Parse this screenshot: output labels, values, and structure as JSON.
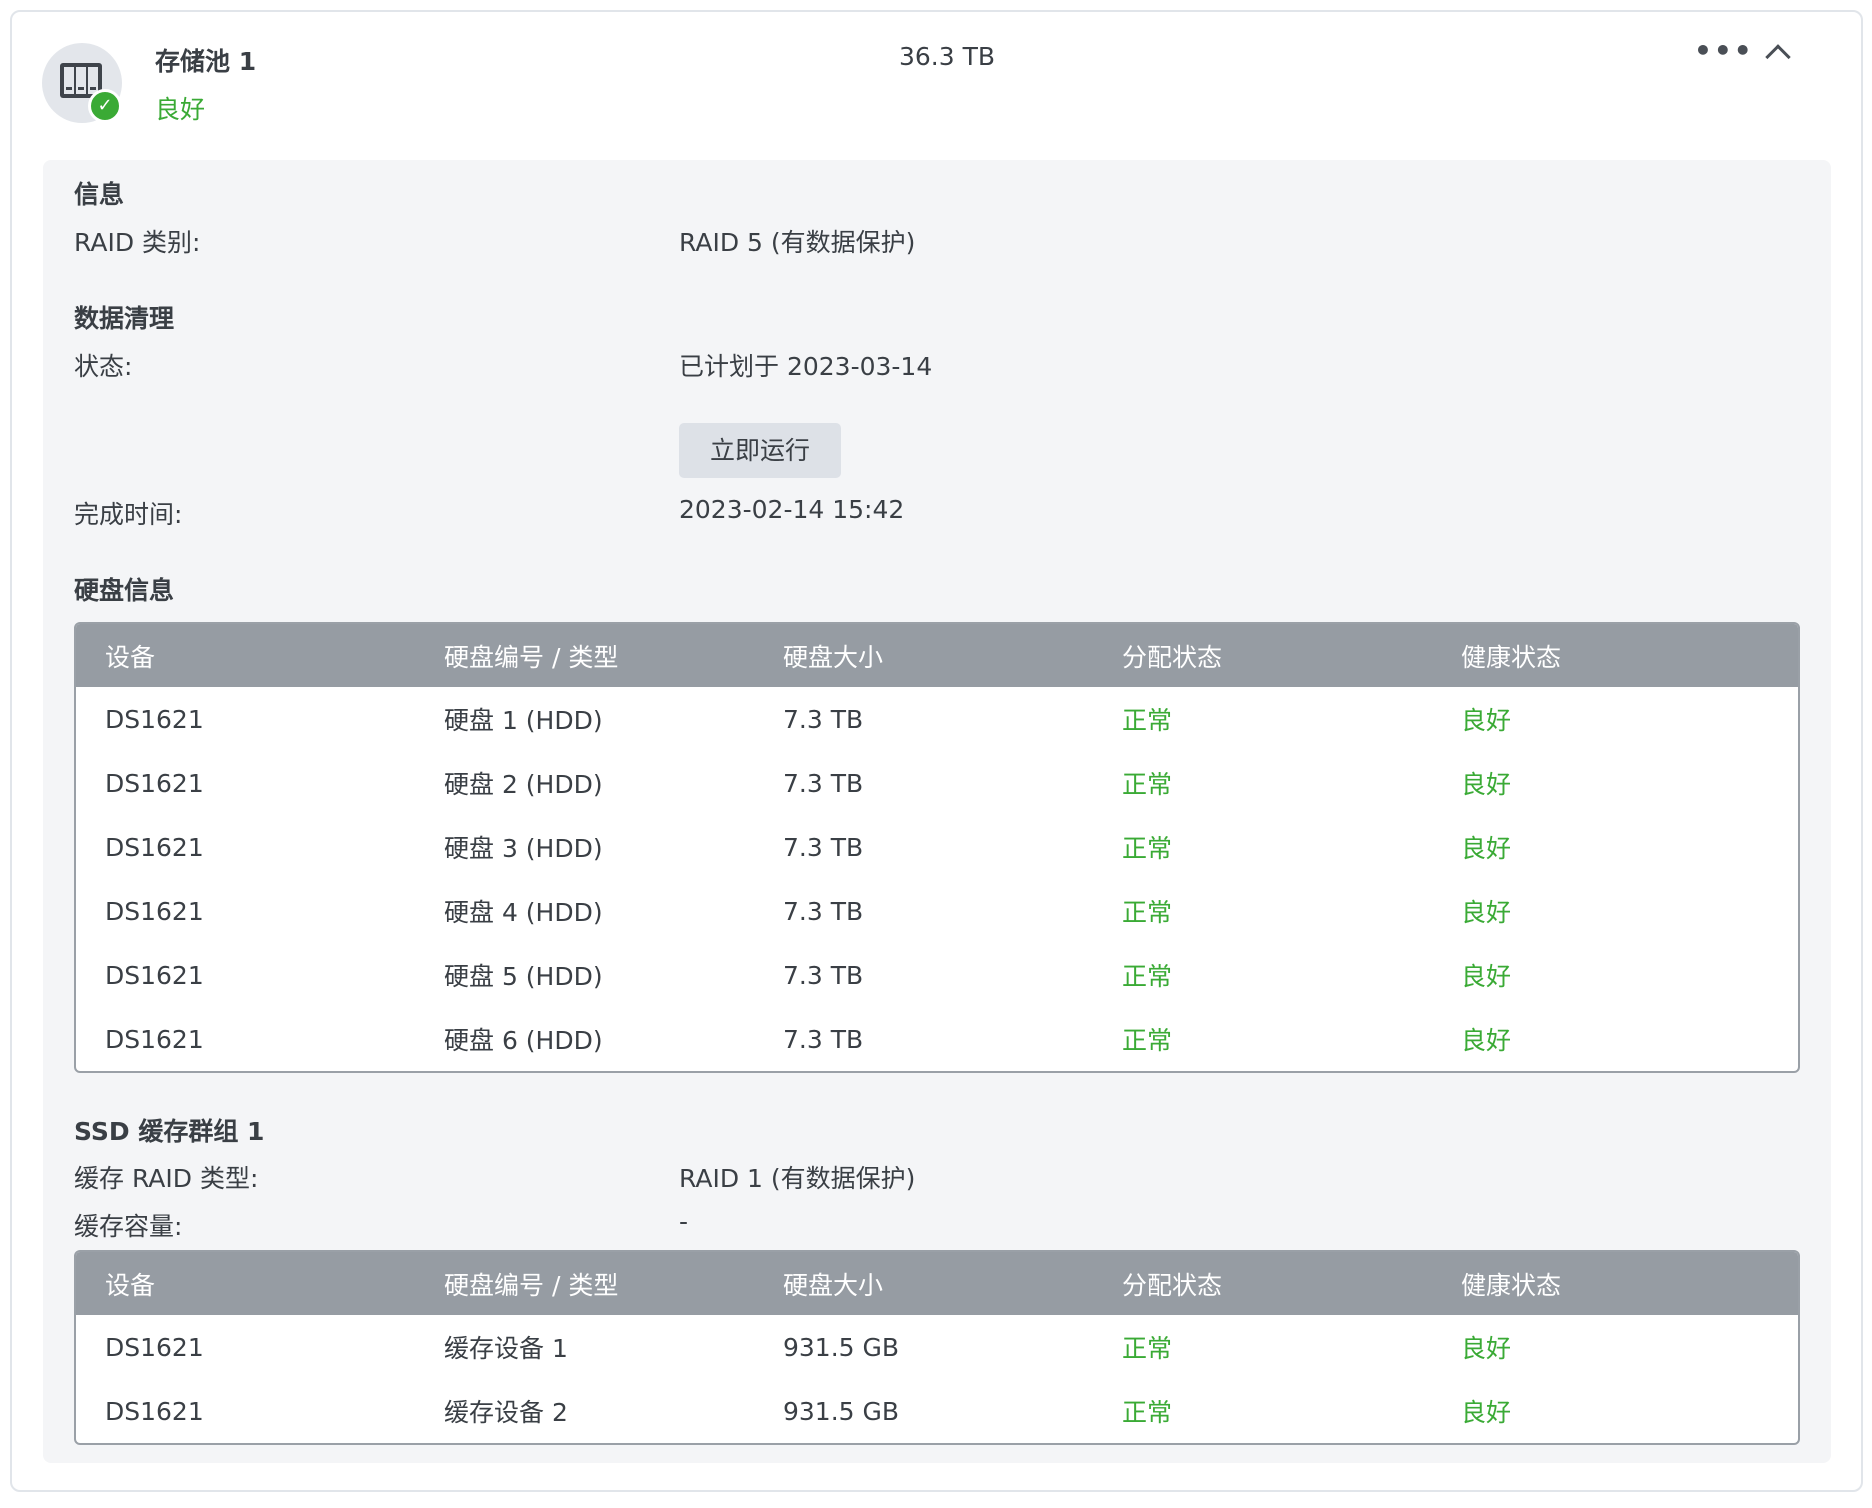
{
  "pool": {
    "title": "存储池 1",
    "status": "良好",
    "capacity": "36.3 TB",
    "more_icon": "more-icon",
    "collapse_icon": "chevron-up-icon"
  },
  "info": {
    "heading": "信息",
    "raid_label": "RAID 类别:",
    "raid_value": "RAID 5 (有数据保护)"
  },
  "scrub": {
    "heading": "数据清理",
    "status_label": "状态:",
    "status_value": "已计划于 2023-03-14",
    "run_button": "立即运行",
    "done_label": "完成时间:",
    "done_value": "2023-02-14 15:42"
  },
  "disks": {
    "heading": "硬盘信息",
    "columns": [
      "设备",
      "硬盘编号 / 类型",
      "硬盘大小",
      "分配状态",
      "健康状态"
    ],
    "rows": [
      [
        "DS1621",
        "硬盘 1 (HDD)",
        "7.3 TB",
        "正常",
        "良好"
      ],
      [
        "DS1621",
        "硬盘 2 (HDD)",
        "7.3 TB",
        "正常",
        "良好"
      ],
      [
        "DS1621",
        "硬盘 3 (HDD)",
        "7.3 TB",
        "正常",
        "良好"
      ],
      [
        "DS1621",
        "硬盘 4 (HDD)",
        "7.3 TB",
        "正常",
        "良好"
      ],
      [
        "DS1621",
        "硬盘 5 (HDD)",
        "7.3 TB",
        "正常",
        "良好"
      ],
      [
        "DS1621",
        "硬盘 6 (HDD)",
        "7.3 TB",
        "正常",
        "良好"
      ]
    ]
  },
  "ssd": {
    "heading": "SSD 缓存群组 1",
    "raid_label": "缓存 RAID 类型:",
    "raid_value": "RAID 1 (有数据保护)",
    "cap_label": "缓存容量:",
    "cap_value": "-",
    "columns": [
      "设备",
      "硬盘编号 / 类型",
      "硬盘大小",
      "分配状态",
      "健康状态"
    ],
    "rows": [
      [
        "DS1621",
        "缓存设备 1",
        "931.5 GB",
        "正常",
        "良好"
      ],
      [
        "DS1621",
        "缓存设备 2",
        "931.5 GB",
        "正常",
        "良好"
      ]
    ]
  },
  "colors": {
    "good": "#3aaa35",
    "header": "#969ca3"
  }
}
